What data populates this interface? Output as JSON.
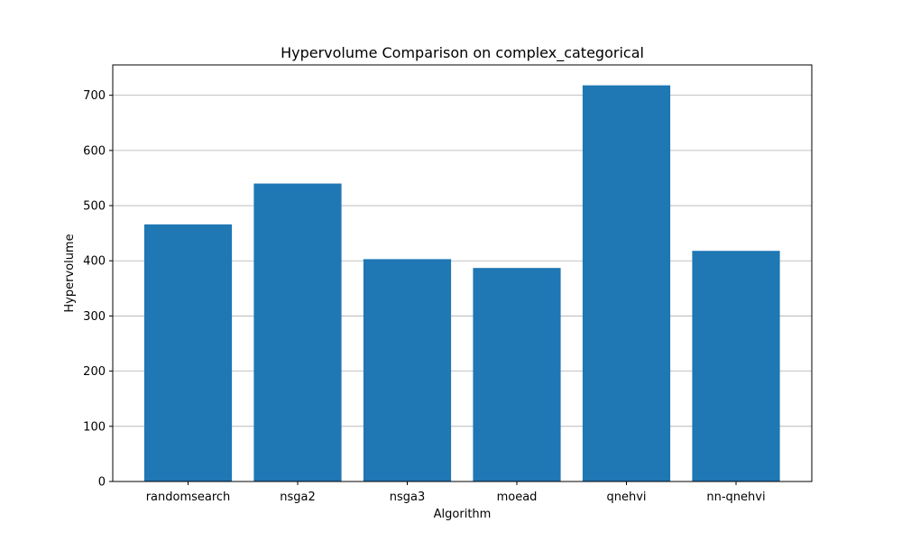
{
  "chart_data": {
    "type": "bar",
    "title": "Hypervolume Comparison on complex_categorical",
    "xlabel": "Algorithm",
    "ylabel": "Hypervolume",
    "categories": [
      "randomsearch",
      "nsga2",
      "nsga3",
      "moead",
      "qnehvi",
      "nn-qnehvi"
    ],
    "values": [
      466,
      540,
      403,
      387,
      718,
      418
    ],
    "ylim": [
      0,
      755
    ],
    "yticks": [
      0,
      100,
      200,
      300,
      400,
      500,
      600,
      700
    ],
    "grid": "y",
    "bar_color": "#1f77b4",
    "grid_color": "#b0b0b0"
  }
}
